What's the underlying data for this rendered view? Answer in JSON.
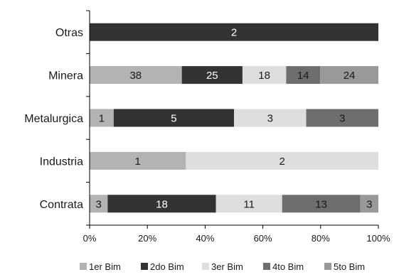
{
  "chart_data": {
    "type": "bar",
    "orientation": "horizontal",
    "stacked": "percent",
    "title": "",
    "xlabel": "",
    "ylabel": "",
    "xlim": [
      0,
      100
    ],
    "x_ticks": [
      "0%",
      "20%",
      "40%",
      "60%",
      "80%",
      "100%"
    ],
    "grid": false,
    "legend_position": "bottom",
    "categories": [
      "Otras",
      "Minera",
      "Metalurgica",
      "Industria",
      "Contrata"
    ],
    "series": [
      {
        "name": "1er Bim",
        "color": "#b3b3b3",
        "label_color": "#1a1a1a",
        "values": [
          0,
          38,
          1,
          1,
          3
        ]
      },
      {
        "name": "2do Bim",
        "color": "#333333",
        "label_color": "#ffffff",
        "values": [
          2,
          25,
          5,
          0,
          18
        ]
      },
      {
        "name": "3er Bim",
        "color": "#dedede",
        "label_color": "#1a1a1a",
        "values": [
          0,
          18,
          3,
          2,
          11
        ]
      },
      {
        "name": "4to Bim",
        "color": "#6e6e6e",
        "label_color": "#1a1a1a",
        "values": [
          0,
          14,
          3,
          0,
          13
        ]
      },
      {
        "name": "5to Bim",
        "color": "#999999",
        "label_color": "#1a1a1a",
        "values": [
          0,
          24,
          0,
          0,
          3
        ]
      }
    ]
  }
}
